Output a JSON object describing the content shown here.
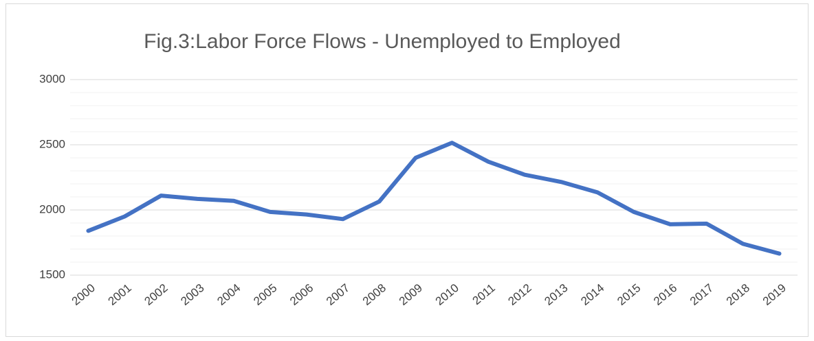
{
  "chart_data": {
    "type": "line",
    "title": "Fig.3:Labor Force Flows - Unemployed to Employed",
    "categories": [
      "2000",
      "2001",
      "2002",
      "2003",
      "2004",
      "2005",
      "2006",
      "2007",
      "2008",
      "2009",
      "2010",
      "2011",
      "2012",
      "2013",
      "2014",
      "2015",
      "2016",
      "2017",
      "2018",
      "2019"
    ],
    "series": [
      {
        "name": "Unemployed to Employed",
        "color": "#4472c4",
        "values": [
          1840,
          1950,
          2110,
          2085,
          2070,
          1985,
          1965,
          1930,
          2065,
          2400,
          2515,
          2370,
          2270,
          2215,
          2135,
          1985,
          1890,
          1895,
          1740,
          1665
        ]
      }
    ],
    "ylim": [
      1500,
      3000
    ],
    "yticks": [
      1500,
      2000,
      2500,
      3000
    ],
    "minor_yticks": [
      1600,
      1700,
      1800,
      1900,
      2100,
      2200,
      2300,
      2400,
      2600,
      2700,
      2800,
      2900
    ],
    "grid": true,
    "legend": false
  }
}
